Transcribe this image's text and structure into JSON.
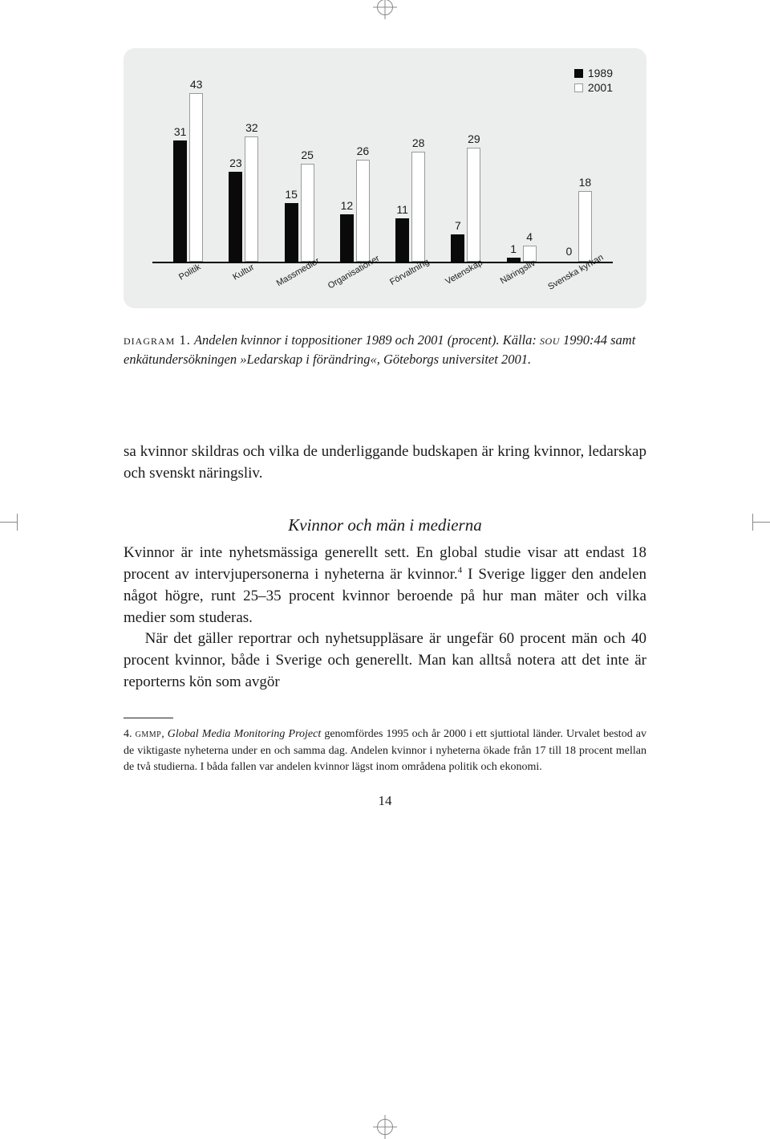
{
  "chart": {
    "type": "grouped-bar",
    "legend": [
      {
        "label": "1989",
        "color": "#0a0a0a"
      },
      {
        "label": "2001",
        "color": "#ffffff"
      }
    ],
    "categories": [
      "Politik",
      "Kultur",
      "Massmedier",
      "Organisationer",
      "Förvaltning",
      "Vetenskap",
      "Näringsliv",
      "Svenska kyrkan"
    ],
    "series": [
      {
        "name": "1989",
        "color": "#0a0a0a",
        "border": "#0a0a0a",
        "values": [
          31,
          23,
          15,
          12,
          11,
          7,
          1,
          0
        ]
      },
      {
        "name": "2001",
        "color": "#ffffff",
        "border": "#9a9a9a",
        "values": [
          43,
          32,
          25,
          26,
          28,
          29,
          4,
          18
        ]
      }
    ],
    "ylim_max": 43,
    "panel_bg": "#eceded",
    "axis_color": "#000000",
    "label_fontsize": 14,
    "xlabel_fontsize": 11,
    "xlabel_rotation_deg": -30
  },
  "caption": {
    "lead": "diagram 1.",
    "title_ital": "Andelen kvinnor i toppositioner 1989 och 2001 (procent).",
    "source_prefix": "Källa: ",
    "source_sc": "sou",
    "source_rest": " 1990:44 samt enkätundersökningen »Ledarskap i förändring«, Göteborgs universitet 2001."
  },
  "body": {
    "p1": "sa kvinnor skildras och vilka de underliggande budskapen är kring kvinnor, ledarskap och svenskt näringsliv.",
    "subhead": "Kvinnor och män i medierna",
    "p2a": "Kvinnor är inte nyhetsmässiga generellt sett. En global studie visar att endast 18 procent av intervjupersonerna i nyheterna är kvinnor.",
    "p2b": " I Sverige ligger den andelen något högre, runt 25–35 procent kvinnor beroende på hur man mäter och vilka medier som studeras.",
    "fn_mark": "4",
    "p3": "När det gäller reportrar och nyhetsuppläsare är ungefär 60 procent män och 40 procent kvinnor, både i Sverige och generellt. Man kan alltså notera att det inte är reporterns kön som avgör"
  },
  "footnote": {
    "num": "4. ",
    "sc": "gmmp",
    "title_ital": ", Global Media Monitoring Project",
    "rest": " genomfördes 1995 och år 2000 i ett sjuttiotal länder. Urvalet bestod av de viktigaste nyheterna under en och samma dag. Andelen kvinnor i nyheterna ökade från 17 till 18 procent mellan de två studierna. I båda fallen var andelen kvinnor lägst inom områdena politik och ekonomi."
  },
  "page_number": "14"
}
